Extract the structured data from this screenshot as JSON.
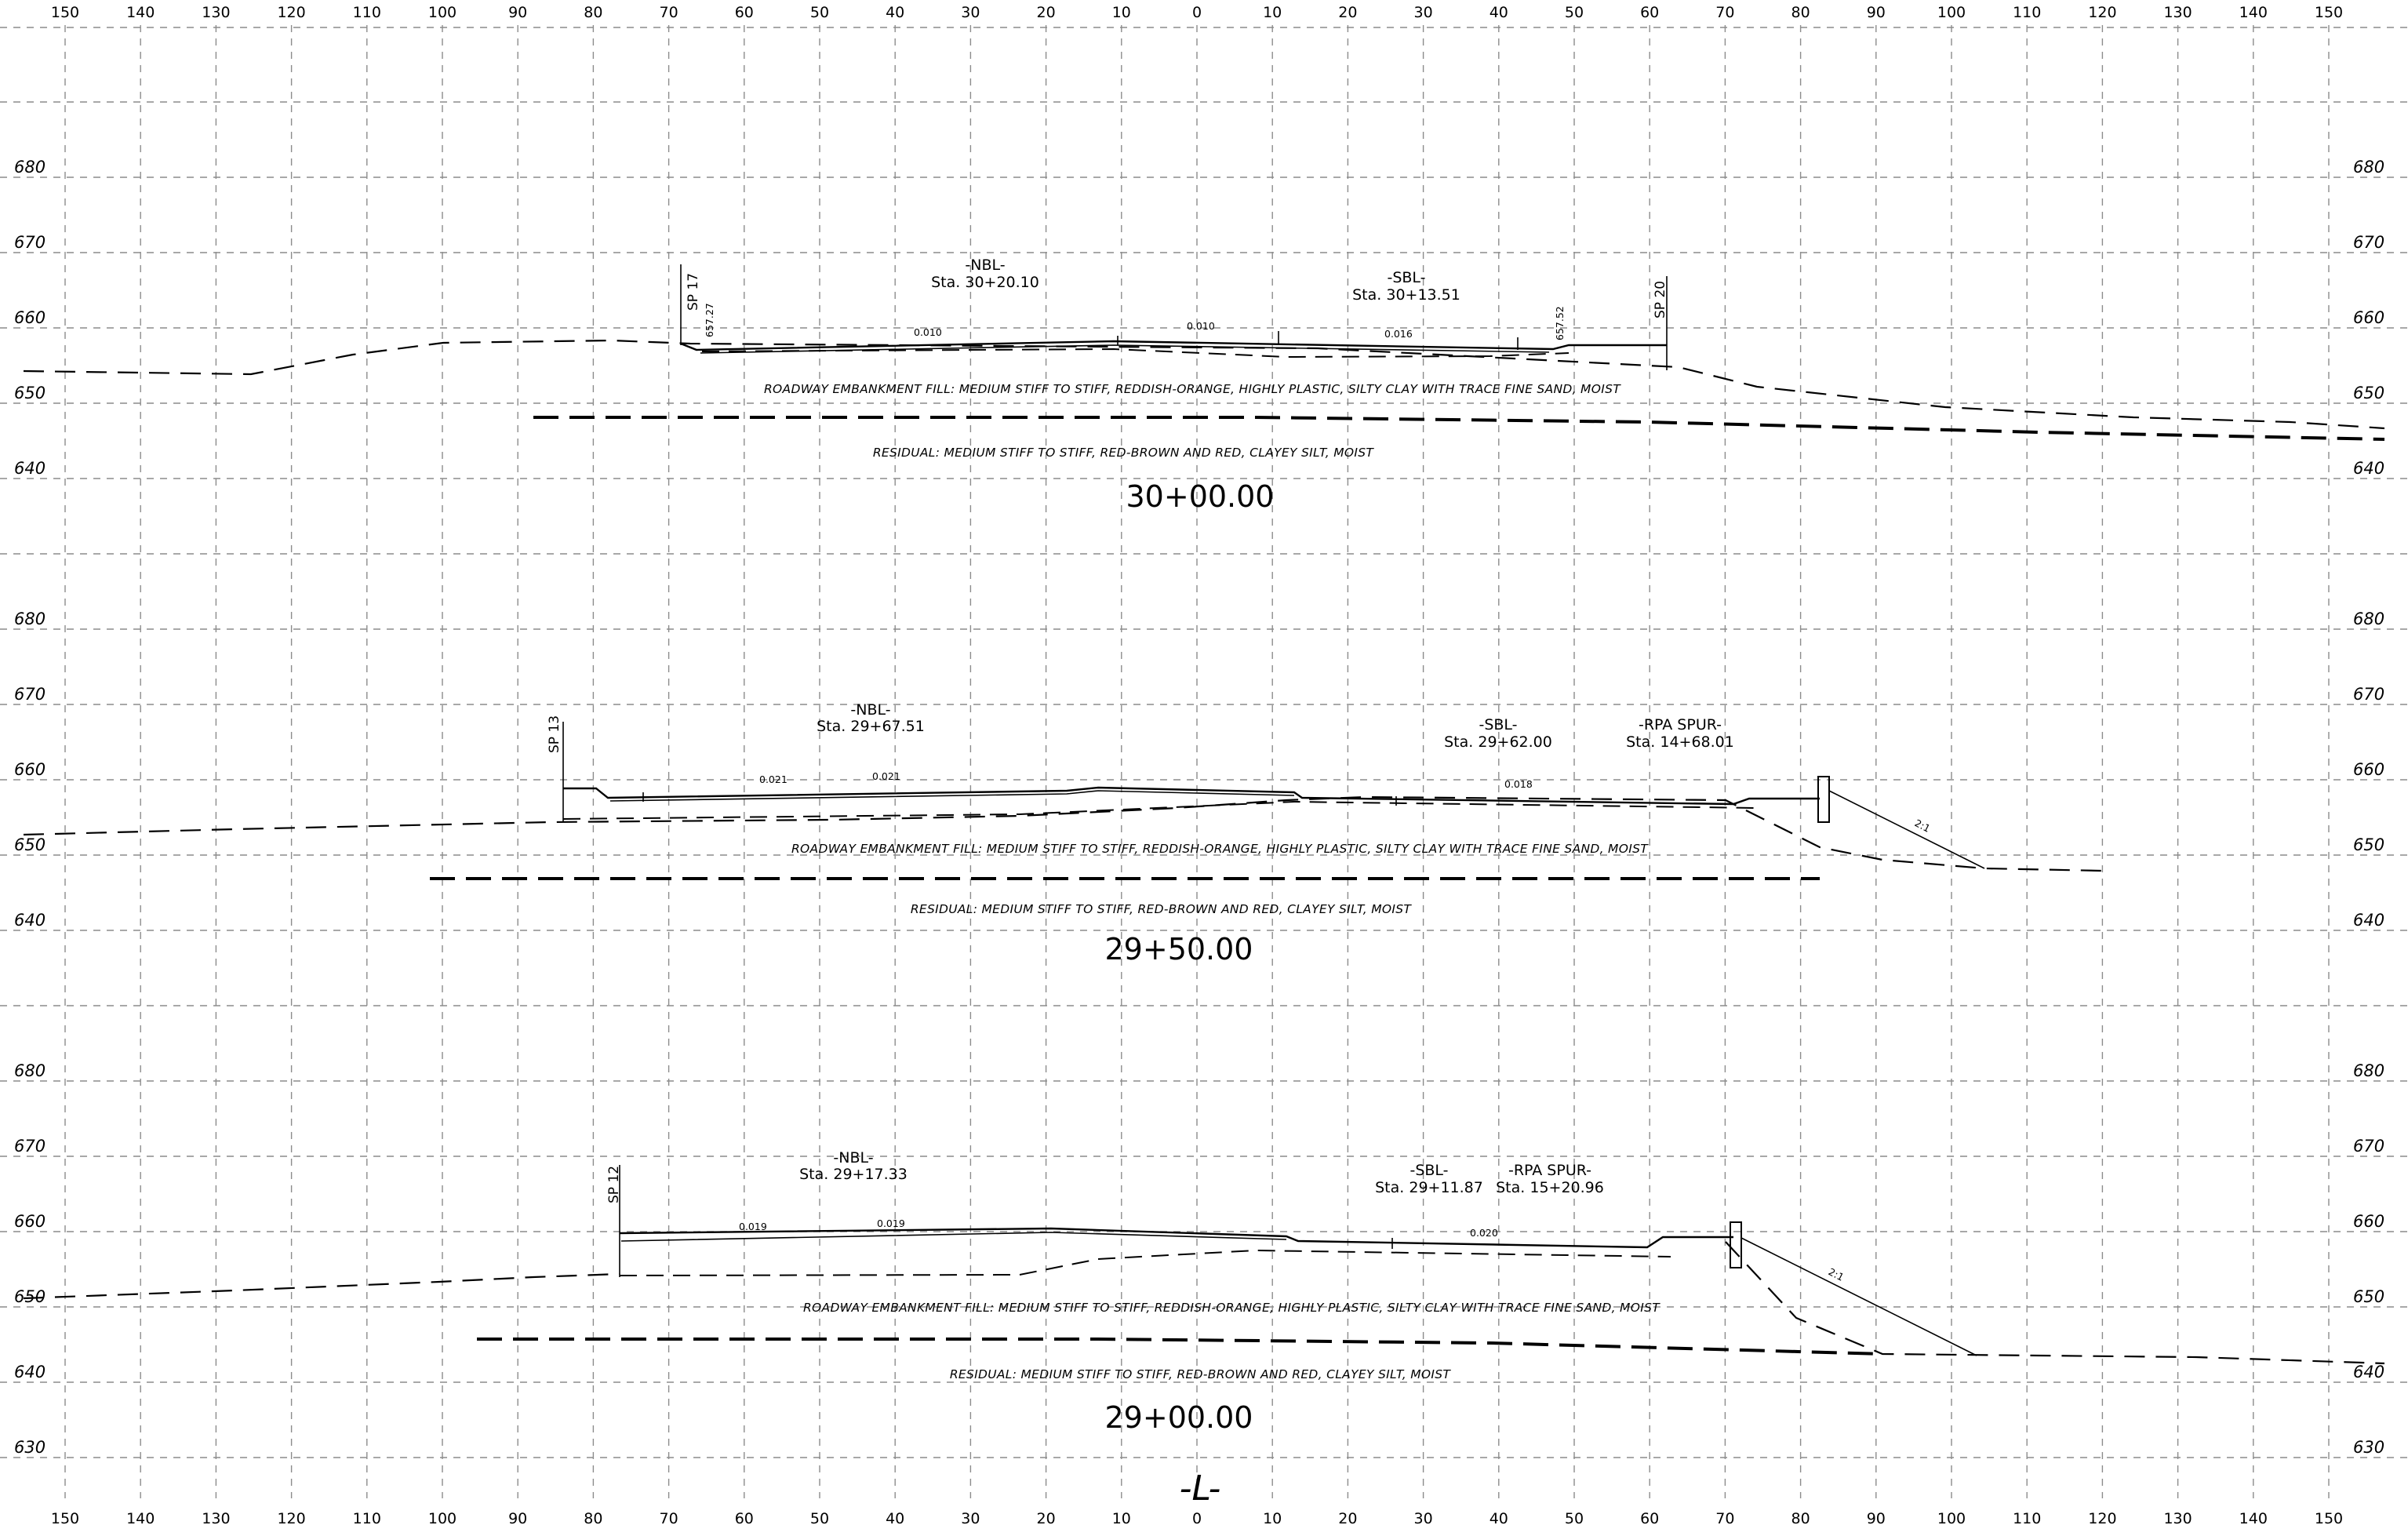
{
  "x_ticks": [
    "150",
    "140",
    "130",
    "120",
    "110",
    "100",
    "90",
    "80",
    "70",
    "60",
    "50",
    "40",
    "30",
    "20",
    "10",
    "0",
    "10",
    "20",
    "30",
    "40",
    "50",
    "60",
    "70",
    "80",
    "90",
    "100",
    "110",
    "120",
    "130",
    "140",
    "150"
  ],
  "sections": [
    {
      "elev_labels": [
        "680",
        "670",
        "660",
        "650",
        "640"
      ],
      "station": "30+00.00",
      "nbl": {
        "name": "-NBL-",
        "sta": "Sta. 30+20.10"
      },
      "sbl": {
        "name": "-SBL-",
        "sta": "Sta. 30+13.51"
      },
      "sp_left": "SP 17",
      "sp_right": "SP 20",
      "elev_left": "657.27",
      "elev_right": "657.52",
      "slopes": [
        "0.010",
        "0.010",
        "0.016"
      ],
      "fill_text": "ROADWAY EMBANKMENT FILL: MEDIUM STIFF TO STIFF, REDDISH-ORANGE, HIGHLY PLASTIC, SILTY CLAY WITH TRACE FINE SAND, MOIST",
      "residual_text": "RESIDUAL: MEDIUM STIFF TO STIFF, RED-BROWN AND RED, CLAYEY SILT, MOIST"
    },
    {
      "elev_labels": [
        "680",
        "670",
        "660",
        "650",
        "640"
      ],
      "station": "29+50.00",
      "nbl": {
        "name": "-NBL-",
        "sta": "Sta. 29+67.51"
      },
      "sbl": {
        "name": "-SBL-",
        "sta": "Sta. 29+62.00"
      },
      "rpa": {
        "name": "-RPA SPUR-",
        "sta": "Sta. 14+68.01"
      },
      "sp_left": "SP 13",
      "slopes": [
        "0.021",
        "0.021",
        "0.018"
      ],
      "side_slope": "2:1",
      "fill_text": "ROADWAY EMBANKMENT FILL: MEDIUM STIFF TO STIFF, REDDISH-ORANGE, HIGHLY PLASTIC, SILTY CLAY WITH TRACE FINE SAND, MOIST",
      "residual_text": "RESIDUAL: MEDIUM STIFF TO STIFF, RED-BROWN AND RED, CLAYEY SILT, MOIST"
    },
    {
      "elev_labels": [
        "680",
        "670",
        "660",
        "650",
        "640",
        "630"
      ],
      "station": "29+00.00",
      "nbl": {
        "name": "-NBL-",
        "sta": "Sta. 29+17.33"
      },
      "sbl": {
        "name": "-SBL-",
        "sta": "Sta. 29+11.87"
      },
      "rpa": {
        "name": "-RPA SPUR-",
        "sta": "Sta. 15+20.96"
      },
      "sp_left": "SP 12",
      "slopes": [
        "0.019",
        "0.019",
        "0.020"
      ],
      "side_slope": "2:1",
      "fill_text": "ROADWAY EMBANKMENT FILL: MEDIUM STIFF TO STIFF, REDDISH-ORANGE, HIGHLY PLASTIC, SILTY CLAY WITH TRACE FINE SAND, MOIST",
      "residual_text": "RESIDUAL: MEDIUM STIFF TO STIFF, RED-BROWN AND RED, CLAYEY SILT, MOIST"
    }
  ],
  "centerline_label": "-L-"
}
